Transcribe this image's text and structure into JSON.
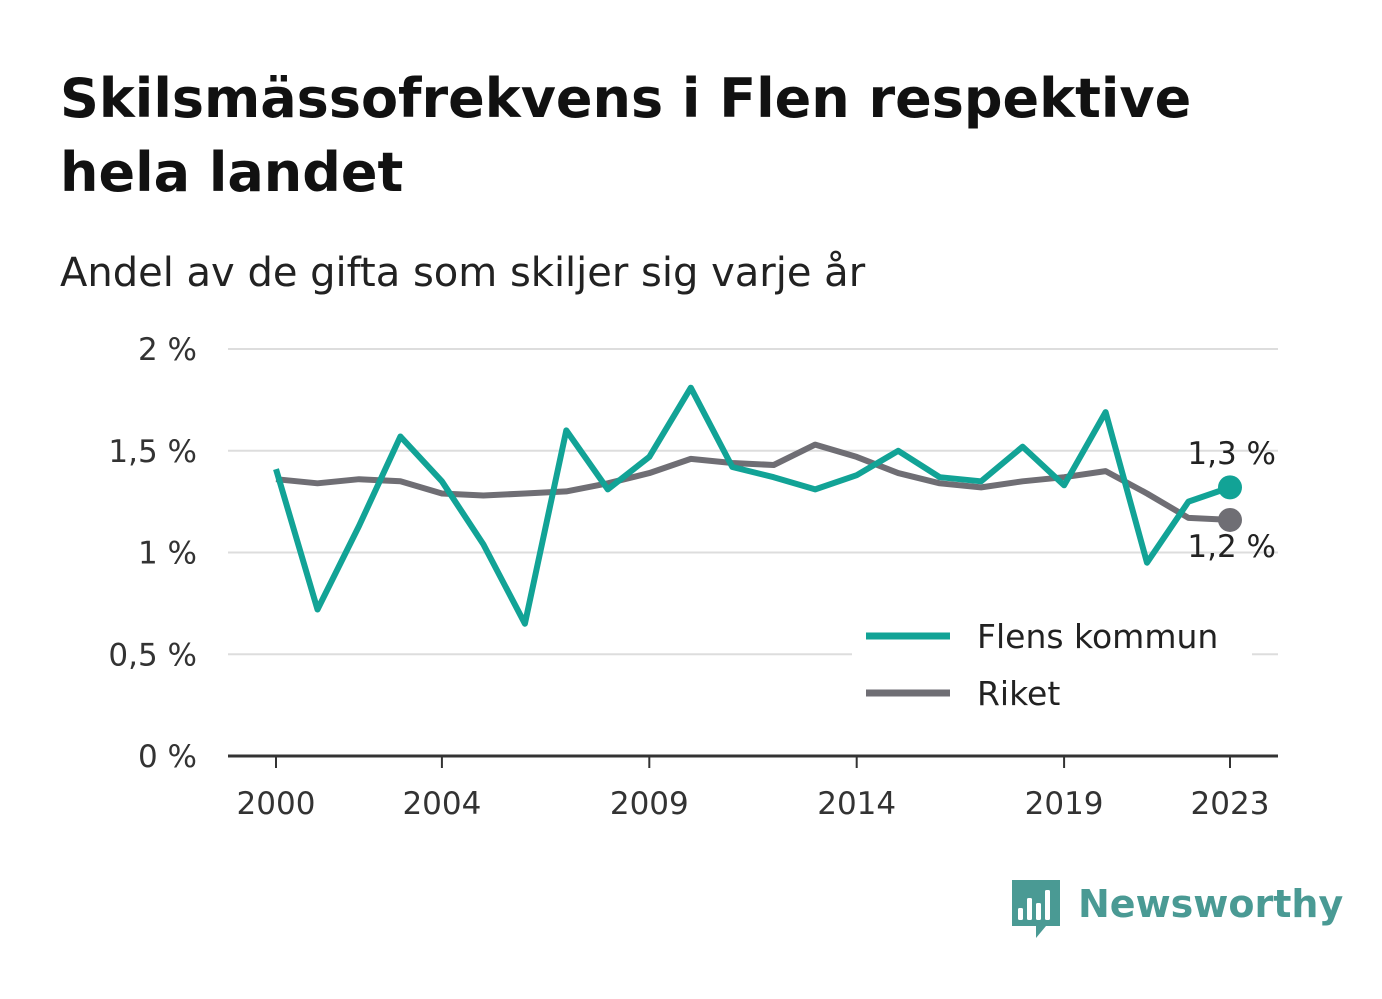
{
  "header": {
    "title": "Skilsmässofrekvens i Flen respektive hela landet",
    "subtitle": "Andel av de gifta som skiljer sig varje år"
  },
  "brand": {
    "name": "Newsworthy",
    "icon": "bar-chart-speech-icon",
    "color": "#4a9a94"
  },
  "chart_data": {
    "type": "line",
    "x": [
      2000,
      2001,
      2002,
      2003,
      2004,
      2005,
      2006,
      2007,
      2008,
      2009,
      2010,
      2011,
      2012,
      2013,
      2014,
      2015,
      2016,
      2017,
      2018,
      2019,
      2020,
      2021,
      2022,
      2023
    ],
    "x_ticks": [
      2000,
      2004,
      2009,
      2014,
      2019,
      2023
    ],
    "x_tick_labels": [
      "2000",
      "2004",
      "2009",
      "2014",
      "2019",
      "2023"
    ],
    "ylim": [
      0,
      2
    ],
    "y_ticks": [
      0,
      0.5,
      1,
      1.5,
      2
    ],
    "y_tick_labels": [
      "0 %",
      "0,5 %",
      "1 %",
      "1,5 %",
      "2 %"
    ],
    "grid": true,
    "legend_position": "bottom-right",
    "series": [
      {
        "name": "Flens kommun",
        "color": "#12a396",
        "values": [
          1.41,
          0.72,
          1.13,
          1.57,
          1.35,
          1.04,
          0.65,
          1.6,
          1.31,
          1.47,
          1.81,
          1.42,
          1.37,
          1.31,
          1.38,
          1.5,
          1.37,
          1.35,
          1.52,
          1.33,
          1.69,
          0.95,
          1.25,
          1.32
        ],
        "end_label": "1,3 %"
      },
      {
        "name": "Riket",
        "color": "#6f6e74",
        "values": [
          1.36,
          1.34,
          1.36,
          1.35,
          1.29,
          1.28,
          1.29,
          1.3,
          1.34,
          1.39,
          1.46,
          1.44,
          1.43,
          1.53,
          1.47,
          1.39,
          1.34,
          1.32,
          1.35,
          1.37,
          1.4,
          1.29,
          1.17,
          1.16
        ],
        "end_label": "1,2 %"
      }
    ]
  }
}
